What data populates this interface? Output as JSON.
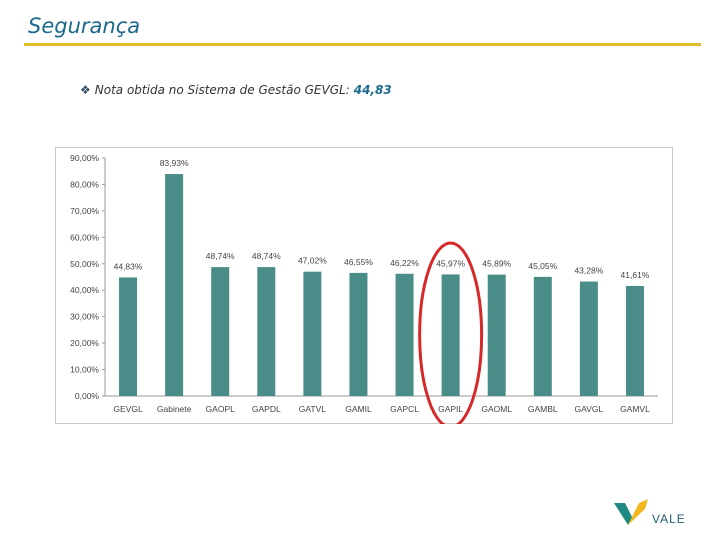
{
  "slide": {
    "title": "Segurança",
    "bullet_diamond": "❖",
    "bullet_text": "Nota obtida no Sistema de Gestão GEVGL:",
    "bullet_value": "44,83"
  },
  "colors": {
    "title": "#1b6a8c",
    "rule": "#e2bd2c",
    "bar": "#4a8c88",
    "highlight_circle": "#d62828",
    "logo_green": "#1e8a82",
    "logo_yellow": "#f2b91f"
  },
  "chart_data": {
    "type": "bar",
    "categories": [
      "GEVGL",
      "Gabinete",
      "GAOPL",
      "GAPDL",
      "GATVL",
      "GAMIL",
      "GAPCL",
      "GAPIL",
      "GAOML",
      "GAMBL",
      "GAVGL",
      "GAMVL"
    ],
    "values": [
      44.83,
      83.93,
      48.74,
      48.74,
      47.02,
      46.55,
      46.22,
      45.97,
      45.89,
      45.05,
      43.28,
      41.61
    ],
    "value_labels": [
      "44,83%",
      "83,93%",
      "48,74%",
      "48,74%",
      "47,02%",
      "46,55%",
      "46,22%",
      "45,97%",
      "45,89%",
      "45,05%",
      "43,28%",
      "41,61%"
    ],
    "y_ticks": [
      "90,00%",
      "80,00%",
      "70,00%",
      "60,00%",
      "50,00%",
      "40,00%",
      "30,00%",
      "20,00%",
      "10,00%",
      "0,00%"
    ],
    "ylim": [
      0,
      90
    ],
    "grid": false,
    "legend": "none",
    "highlighted_category": "GAPIL",
    "title": "",
    "xlabel": "",
    "ylabel": ""
  },
  "logo": {
    "text": "VALE"
  }
}
